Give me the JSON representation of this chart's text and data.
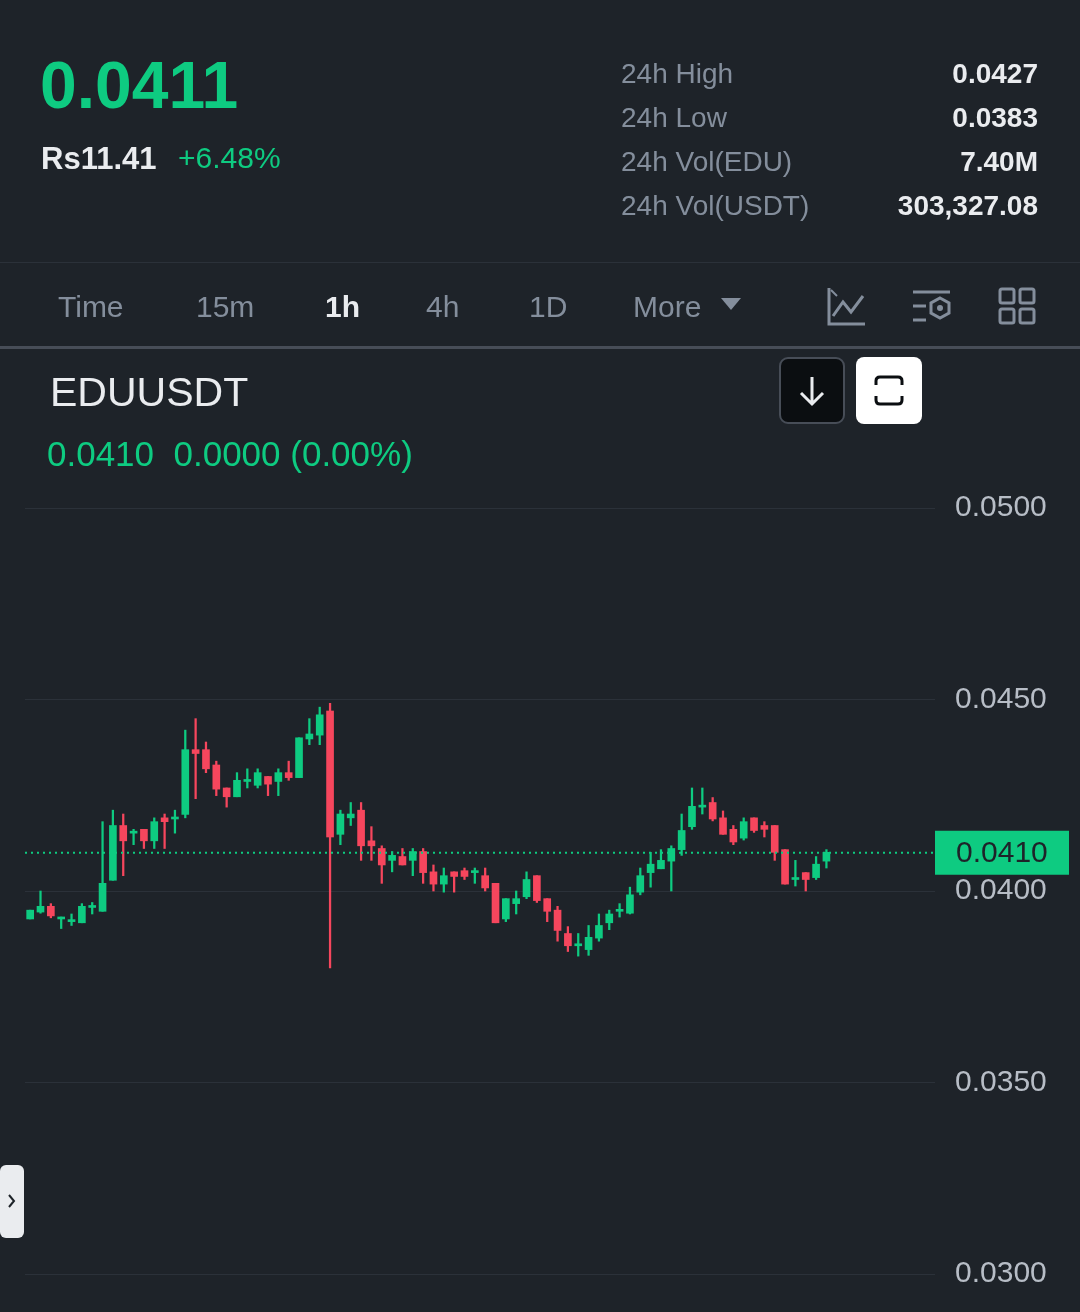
{
  "chart_data": {
    "type": "candlestick",
    "title": "EDUUSDT",
    "subtitle": "0.0410  0.0000 (0.00%)",
    "annotations": [
      "0.0411",
      "Rs11.41",
      "+6.48%",
      "24h High",
      "0.0427",
      "24h Low",
      "0.0383",
      "24h Vol(EDU)",
      "7.40M",
      "24h Vol(USDT)",
      "303,327.08",
      "Time",
      "15m",
      "1h",
      "4h",
      "1D",
      "More"
    ],
    "categories": [
      null,
      null,
      null,
      null,
      null,
      null,
      null,
      null,
      null,
      null,
      null,
      null,
      null,
      null,
      null,
      null,
      null,
      null,
      null,
      null,
      null,
      null,
      null,
      null,
      null,
      null,
      null,
      null,
      null,
      null,
      null,
      null,
      null,
      null,
      null,
      null,
      null,
      null,
      null,
      null,
      null,
      null,
      null,
      null,
      null,
      null,
      null,
      null,
      null,
      null,
      null,
      null,
      null,
      null,
      null,
      null,
      null,
      null,
      null,
      null,
      null,
      null,
      null,
      null,
      null,
      null,
      null,
      null,
      null,
      null,
      null,
      null,
      null,
      null,
      null,
      null,
      null,
      null,
      null,
      null,
      null,
      null,
      null,
      null,
      null,
      null,
      null,
      null
    ],
    "ohlc": [
      [
        0.03927,
        0.0395,
        0.03927,
        0.0395
      ],
      [
        0.03945,
        0.04,
        0.03942,
        0.0396
      ],
      [
        0.0396,
        0.03967,
        0.0393,
        0.03935
      ],
      [
        0.03927,
        0.03932,
        0.03902,
        0.03932
      ],
      [
        0.0392,
        0.0394,
        0.0391,
        0.03922
      ],
      [
        0.03917,
        0.03967,
        0.03917,
        0.0396
      ],
      [
        0.03957,
        0.0397,
        0.0394,
        0.03962
      ],
      [
        0.03947,
        0.04181,
        0.03947,
        0.0402
      ],
      [
        0.04028,
        0.04211,
        0.04028,
        0.04171
      ],
      [
        0.04171,
        0.04201,
        0.0404,
        0.04131
      ],
      [
        0.04151,
        0.04161,
        0.04121,
        0.04156
      ],
      [
        0.04161,
        0.04161,
        0.04111,
        0.04131
      ],
      [
        0.04131,
        0.04191,
        0.04111,
        0.04181
      ],
      [
        0.04191,
        0.04201,
        0.04111,
        0.04181
      ],
      [
        0.04188,
        0.04211,
        0.04151,
        0.04193
      ],
      [
        0.042,
        0.0442,
        0.04191,
        0.04369
      ],
      [
        0.04369,
        0.0445,
        0.04241,
        0.04359
      ],
      [
        0.04369,
        0.04389,
        0.04309,
        0.04319
      ],
      [
        0.04329,
        0.04339,
        0.04249,
        0.04266
      ],
      [
        0.04269,
        0.04269,
        0.04219,
        0.04246
      ],
      [
        0.04246,
        0.04309,
        0.04246,
        0.04289
      ],
      [
        0.04286,
        0.04319,
        0.04269,
        0.04291
      ],
      [
        0.04276,
        0.04319,
        0.04269,
        0.04309
      ],
      [
        0.04299,
        0.04299,
        0.04249,
        0.04279
      ],
      [
        0.04286,
        0.04319,
        0.04249,
        0.04309
      ],
      [
        0.04309,
        0.04339,
        0.04289,
        0.04296
      ],
      [
        0.04296,
        0.044,
        0.04296,
        0.044
      ],
      [
        0.04397,
        0.0445,
        0.04382,
        0.0441
      ],
      [
        0.04407,
        0.0448,
        0.04382,
        0.0446
      ],
      [
        0.0447,
        0.0449,
        0.03799,
        0.04141
      ],
      [
        0.04148,
        0.04211,
        0.04121,
        0.04201
      ],
      [
        0.04191,
        0.04231,
        0.04171,
        0.04201
      ],
      [
        0.04211,
        0.04231,
        0.0408,
        0.04118
      ],
      [
        0.04131,
        0.04168,
        0.0408,
        0.04118
      ],
      [
        0.04111,
        0.04118,
        0.0402,
        0.04068
      ],
      [
        0.0408,
        0.04103,
        0.0405,
        0.04093
      ],
      [
        0.0409,
        0.04111,
        0.04068,
        0.04068
      ],
      [
        0.0408,
        0.04111,
        0.0404,
        0.04103
      ],
      [
        0.04103,
        0.04111,
        0.0402,
        0.04048
      ],
      [
        0.0405,
        0.04068,
        0.04,
        0.04018
      ],
      [
        0.04018,
        0.0406,
        0.03997,
        0.0404
      ],
      [
        0.0405,
        0.0405,
        0.03997,
        0.04038
      ],
      [
        0.04053,
        0.0406,
        0.0403,
        0.04038
      ],
      [
        0.04048,
        0.0406,
        0.0402,
        0.04053
      ],
      [
        0.0404,
        0.0406,
        0.04,
        0.04008
      ],
      [
        0.0402,
        0.0402,
        0.03917,
        0.03917
      ],
      [
        0.03927,
        0.0398,
        0.0392,
        0.0398
      ],
      [
        0.03967,
        0.04,
        0.0394,
        0.0398
      ],
      [
        0.03985,
        0.0405,
        0.0398,
        0.0403
      ],
      [
        0.0404,
        0.0404,
        0.0397,
        0.03975
      ],
      [
        0.0398,
        0.0398,
        0.0392,
        0.03947
      ],
      [
        0.0395,
        0.0396,
        0.03869,
        0.03897
      ],
      [
        0.03889,
        0.03907,
        0.03842,
        0.03857
      ],
      [
        0.03857,
        0.03889,
        0.0383,
        0.03862
      ],
      [
        0.03847,
        0.0391,
        0.03832,
        0.03879
      ],
      [
        0.03877,
        0.0394,
        0.03869,
        0.0391
      ],
      [
        0.03917,
        0.0395,
        0.03899,
        0.0394
      ],
      [
        0.03947,
        0.03967,
        0.03932,
        0.03952
      ],
      [
        0.03942,
        0.0401,
        0.0394,
        0.0399
      ],
      [
        0.03997,
        0.0406,
        0.0399,
        0.0404
      ],
      [
        0.04048,
        0.04101,
        0.0401,
        0.0407
      ],
      [
        0.04058,
        0.04108,
        0.04058,
        0.0408
      ],
      [
        0.04078,
        0.04118,
        0.04,
        0.04111
      ],
      [
        0.04108,
        0.04201,
        0.04093,
        0.04158
      ],
      [
        0.04168,
        0.04269,
        0.04161,
        0.04221
      ],
      [
        0.04219,
        0.04269,
        0.04201,
        0.04224
      ],
      [
        0.04231,
        0.04244,
        0.04183,
        0.04188
      ],
      [
        0.04191,
        0.04209,
        0.04148,
        0.04148
      ],
      [
        0.04161,
        0.04171,
        0.04121,
        0.04128
      ],
      [
        0.04138,
        0.04191,
        0.04133,
        0.04181
      ],
      [
        0.04191,
        0.04191,
        0.04153,
        0.04158
      ],
      [
        0.04171,
        0.04181,
        0.04141,
        0.04161
      ],
      [
        0.04171,
        0.04171,
        0.0408,
        0.04101
      ],
      [
        0.04108,
        0.04108,
        0.04018,
        0.04018
      ],
      [
        0.0403,
        0.0408,
        0.04013,
        0.04033
      ],
      [
        0.04048,
        0.04048,
        0.04,
        0.0403
      ],
      [
        0.04035,
        0.0409,
        0.0403,
        0.0407
      ],
      [
        0.04078,
        0.04108,
        0.0406,
        0.04101
      ],
      null,
      null,
      null,
      null,
      null,
      null,
      null,
      null,
      null,
      null
    ],
    "ylim": [
      0.03,
      0.05
    ],
    "yticks": [
      {
        "value": 0.03,
        "label": "0.0300"
      },
      {
        "value": 0.035,
        "label": "0.0350"
      },
      {
        "value": 0.04,
        "label": "0.0400"
      },
      {
        "value": 0.045,
        "label": "0.0450"
      },
      {
        "value": 0.05,
        "label": "0.0500"
      }
    ],
    "grid": "y",
    "ref_lines": [
      {
        "axis": "y",
        "value": 0.041,
        "label": "0.0410",
        "color": "#0ecb81",
        "line_style": "dotted"
      }
    ]
  }
}
